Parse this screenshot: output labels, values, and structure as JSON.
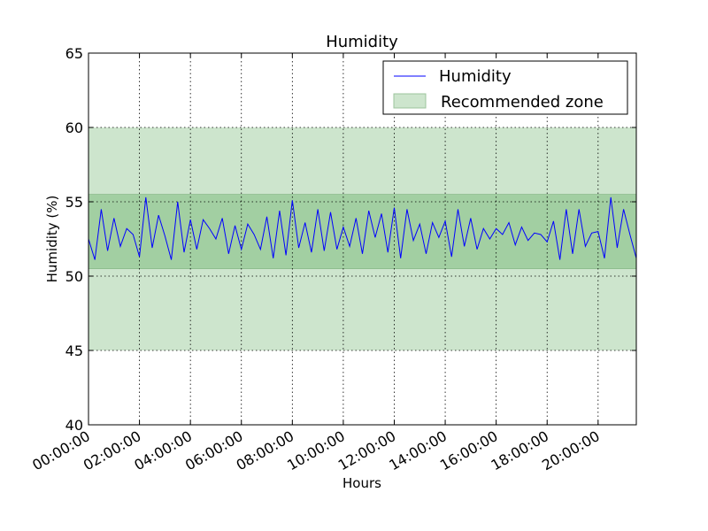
{
  "chart_data": {
    "type": "line",
    "title": "Humidity",
    "xlabel": "Hours",
    "ylabel": "Humidity (%)",
    "ylim": [
      40,
      65
    ],
    "xlim_hours": [
      0,
      21.5
    ],
    "yticks": [
      40,
      45,
      50,
      55,
      60,
      65
    ],
    "xtick_labels": [
      "00:00:00",
      "02:00:00",
      "04:00:00",
      "06:00:00",
      "08:00:00",
      "10:00:00",
      "12:00:00",
      "14:00:00",
      "16:00:00",
      "18:00:00",
      "20:00:00"
    ],
    "xtick_hours": [
      0,
      2,
      4,
      6,
      8,
      10,
      12,
      14,
      16,
      18,
      20
    ],
    "grid": true,
    "legend_position": "top-right",
    "bands": [
      {
        "name": "Recommended zone",
        "y0": 45,
        "y1": 60,
        "color": "#cde5cd"
      },
      {
        "y0": 50.5,
        "y1": 55.5,
        "color": "#a2cfa2"
      }
    ],
    "series": [
      {
        "name": "Humidity",
        "color": "#0000ff",
        "x_hours": [
          0.0,
          0.25,
          0.5,
          0.75,
          1.0,
          1.25,
          1.5,
          1.75,
          2.0,
          2.25,
          2.5,
          2.75,
          3.0,
          3.25,
          3.5,
          3.75,
          4.0,
          4.25,
          4.5,
          4.75,
          5.0,
          5.25,
          5.5,
          5.75,
          6.0,
          6.25,
          6.5,
          6.75,
          7.0,
          7.25,
          7.5,
          7.75,
          8.0,
          8.25,
          8.5,
          8.75,
          9.0,
          9.25,
          9.5,
          9.75,
          10.0,
          10.25,
          10.5,
          10.75,
          11.0,
          11.25,
          11.5,
          11.75,
          12.0,
          12.25,
          12.5,
          12.75,
          13.0,
          13.25,
          13.5,
          13.75,
          14.0,
          14.25,
          14.5,
          14.75,
          15.0,
          15.25,
          15.5,
          15.75,
          16.0,
          16.25,
          16.5,
          16.75,
          17.0,
          17.25,
          17.5,
          17.75,
          18.0,
          18.25,
          18.5,
          18.75,
          19.0,
          19.25,
          19.5,
          19.75,
          20.0,
          20.25,
          20.5,
          20.75,
          21.0,
          21.25,
          21.5
        ],
        "values": [
          52.5,
          51.1,
          54.5,
          51.7,
          53.9,
          52.0,
          53.2,
          52.8,
          51.3,
          55.3,
          51.9,
          54.1,
          52.7,
          51.1,
          55.0,
          51.6,
          53.8,
          51.8,
          53.8,
          53.2,
          52.5,
          53.9,
          51.5,
          53.4,
          51.8,
          53.5,
          52.8,
          51.8,
          54.0,
          51.2,
          54.4,
          51.4,
          55.1,
          51.9,
          53.6,
          51.6,
          54.5,
          51.7,
          54.3,
          51.8,
          53.3,
          52.0,
          53.9,
          51.5,
          54.4,
          52.6,
          54.2,
          51.6,
          54.6,
          51.2,
          54.5,
          52.4,
          53.5,
          51.5,
          53.6,
          52.6,
          53.7,
          51.3,
          54.5,
          52.0,
          53.9,
          51.8,
          53.2,
          52.5,
          53.2,
          52.8,
          53.6,
          52.1,
          53.3,
          52.4,
          52.9,
          52.8,
          52.3,
          53.7,
          51.1,
          54.5,
          51.5,
          54.5,
          52.0,
          52.9,
          53.0,
          51.2,
          55.3,
          51.9,
          54.5,
          52.8,
          51.2
        ]
      }
    ]
  }
}
